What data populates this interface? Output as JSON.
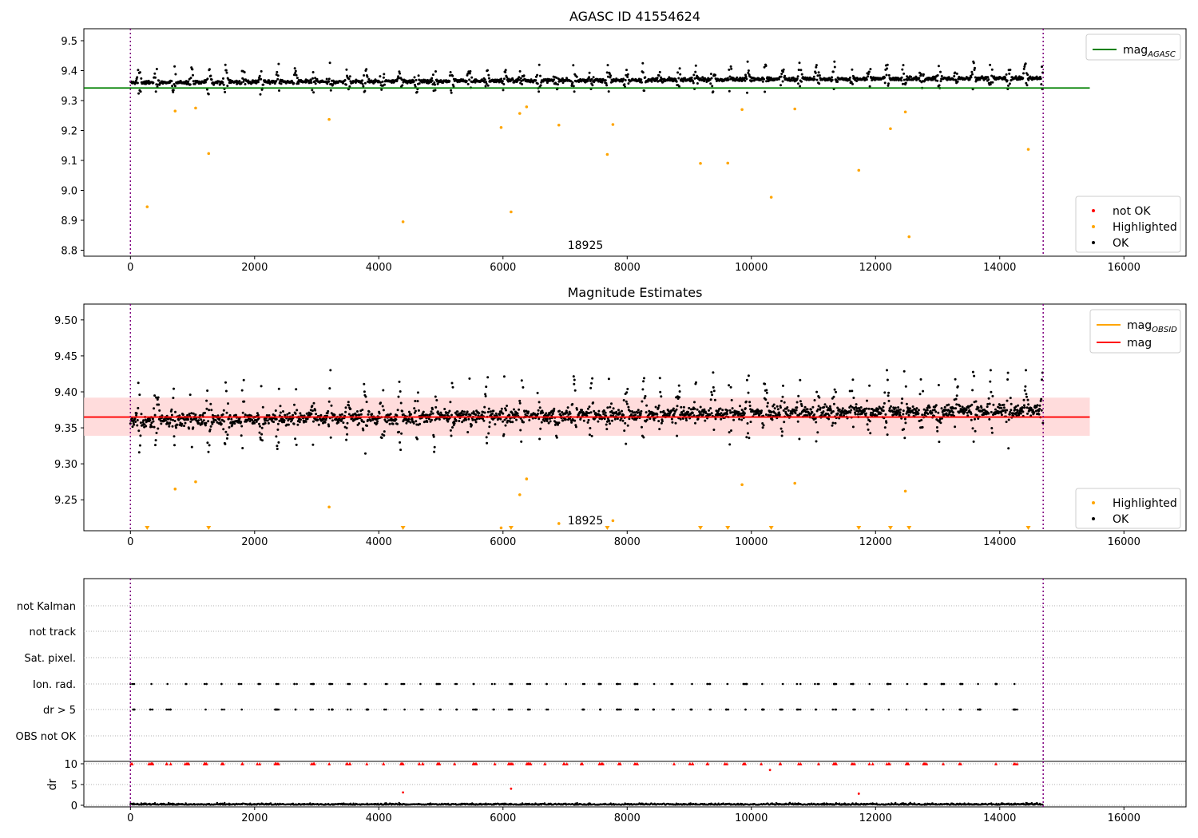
{
  "chart_data": [
    {
      "type": "scatter",
      "title": "AGASC ID 41554624",
      "xlim": [
        -750,
        17000
      ],
      "ylim": [
        8.78,
        9.54
      ],
      "xticks": [
        0,
        2000,
        4000,
        6000,
        8000,
        10000,
        12000,
        14000,
        16000
      ],
      "yticks": [
        8.8,
        8.9,
        9.0,
        9.1,
        9.2,
        9.3,
        9.4,
        9.5
      ],
      "yticks_format": 1,
      "grid": false,
      "legend_top": {
        "position": "top-right",
        "entries": [
          {
            "label": "mag",
            "sub": "AGASC",
            "color": "#008000",
            "kind": "line"
          }
        ]
      },
      "legend_bottom": {
        "position": "bottom-right",
        "entries": [
          {
            "label": "not OK",
            "color": "#ff0000",
            "kind": "dot"
          },
          {
            "label": "Highlighted",
            "color": "#ffa500",
            "kind": "dot"
          },
          {
            "label": "OK",
            "color": "#000000",
            "kind": "dot"
          }
        ]
      },
      "obsid_label": "18925",
      "obsid_range": [
        0,
        14700
      ],
      "reference_line": {
        "name": "mag_AGASC",
        "value": 9.342,
        "x_range": [
          -750,
          15450
        ],
        "color": "#008000"
      },
      "series": [
        {
          "name": "OK",
          "color": "#000000",
          "summary": {
            "typical_min": 9.32,
            "typical_max": 9.43,
            "mean": 9.365
          }
        },
        {
          "name": "Highlighted",
          "color": "#ffa500",
          "points": [
            [
              270,
              8.945
            ],
            [
              720,
              9.265
            ],
            [
              1050,
              9.275
            ],
            [
              1260,
              9.123
            ],
            [
              3200,
              9.237
            ],
            [
              4390,
              8.895
            ],
            [
              5970,
              9.21
            ],
            [
              6130,
              8.928
            ],
            [
              6270,
              9.257
            ],
            [
              6380,
              9.279
            ],
            [
              6900,
              9.218
            ],
            [
              7680,
              9.12
            ],
            [
              7770,
              9.22
            ],
            [
              9180,
              9.09
            ],
            [
              9620,
              9.091
            ],
            [
              9850,
              9.27
            ],
            [
              10320,
              8.977
            ],
            [
              10700,
              9.272
            ],
            [
              11730,
              9.067
            ],
            [
              12240,
              9.206
            ],
            [
              12480,
              9.262
            ],
            [
              12540,
              8.845
            ],
            [
              14460,
              9.137
            ]
          ]
        }
      ]
    },
    {
      "type": "scatter",
      "title": "Magnitude Estimates",
      "xlim": [
        -750,
        17000
      ],
      "ylim": [
        9.207,
        9.522
      ],
      "xticks": [
        0,
        2000,
        4000,
        6000,
        8000,
        10000,
        12000,
        14000,
        16000
      ],
      "yticks": [
        9.25,
        9.3,
        9.35,
        9.4,
        9.45,
        9.5
      ],
      "yticks_format": 2,
      "grid": false,
      "legend_top": {
        "position": "top-right",
        "entries": [
          {
            "label": "mag",
            "sub": "OBSID",
            "color": "#ffa500",
            "kind": "line"
          },
          {
            "label": "mag",
            "sub": "",
            "color": "#ff0000",
            "kind": "line"
          }
        ]
      },
      "legend_bottom": {
        "position": "bottom-right",
        "entries": [
          {
            "label": "Highlighted",
            "color": "#ffa500",
            "kind": "dot"
          },
          {
            "label": "OK",
            "color": "#000000",
            "kind": "dot"
          }
        ]
      },
      "obsid_label": "18925",
      "obsid_range": [
        0,
        14700
      ],
      "reference_line": {
        "name": "mag",
        "value": 9.365,
        "x_range": [
          -750,
          15450
        ],
        "color": "#ff0000"
      },
      "band": {
        "low": 9.339,
        "high": 9.392,
        "x_range": [
          -750,
          15450
        ]
      },
      "series": [
        {
          "name": "OK",
          "color": "#000000",
          "summary": {
            "typical_min": 9.31,
            "typical_max": 9.43,
            "mean": 9.365
          }
        },
        {
          "name": "Highlighted",
          "color": "#ffa500",
          "points": [
            [
              720,
              9.265
            ],
            [
              1050,
              9.275
            ],
            [
              3200,
              9.24
            ],
            [
              5970,
              9.211
            ],
            [
              6270,
              9.257
            ],
            [
              6380,
              9.279
            ],
            [
              6900,
              9.217
            ],
            [
              7770,
              9.221
            ],
            [
              9850,
              9.271
            ],
            [
              10700,
              9.273
            ],
            [
              12480,
              9.262
            ]
          ]
        },
        {
          "name": "Highlighted (below range)",
          "color": "#ffa500",
          "x": [
            270,
            1260,
            4390,
            6130,
            7680,
            9180,
            9620,
            10320,
            11730,
            12240,
            12540,
            14460
          ]
        }
      ]
    },
    {
      "type": "scatter",
      "title": "",
      "xlim": [
        -750,
        17000
      ],
      "flag_labels": [
        "not Kalman",
        "not track",
        "Sat. pixel.",
        "Ion. rad.",
        "dr > 5",
        "OBS not OK"
      ],
      "flag_rows_with_points": [
        "Ion. rad.",
        "dr > 5"
      ],
      "grid": "horizontal-dotted",
      "obsid_range": [
        0,
        14700
      ]
    },
    {
      "type": "scatter",
      "title": "",
      "ylabel": "dr",
      "xlim": [
        -750,
        17000
      ],
      "ylim": [
        0,
        10
      ],
      "xticks": [
        0,
        2000,
        4000,
        6000,
        8000,
        10000,
        12000,
        14000,
        16000
      ],
      "yticks": [
        0,
        5,
        10
      ],
      "yticks_format": 0,
      "grid": "horizontal-dotted",
      "obsid_range": [
        0,
        14700
      ],
      "series": [
        {
          "name": "dr",
          "color": "#000000",
          "summary": {
            "typical_max": 1.2
          }
        },
        {
          "name": "outliers",
          "color": "#ff0000",
          "points": [
            [
              4390,
              3.1
            ],
            [
              6130,
              4.0
            ],
            [
              11730,
              2.8
            ],
            [
              10300,
              8.5
            ]
          ]
        }
      ]
    }
  ],
  "colors": {
    "ok": "#000000",
    "highlighted": "#ffa500",
    "not_ok": "#ff0000",
    "agasc": "#008000",
    "mag": "#ff0000",
    "obsid": "#ffa500",
    "band": "#ffd0d0",
    "boundary": "#800080"
  }
}
